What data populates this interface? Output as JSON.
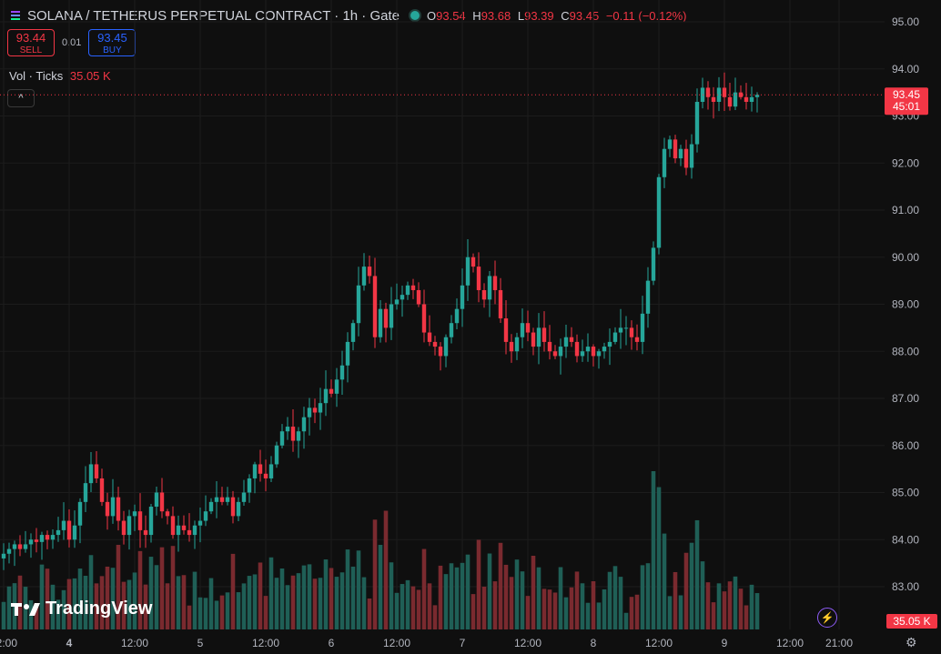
{
  "header": {
    "title": "SOLANA / TETHERUS PERPETUAL CONTRACT · 1h · Gate",
    "ohlc": [
      {
        "k": "O",
        "v": "93.54"
      },
      {
        "k": "H",
        "v": "93.68"
      },
      {
        "k": "L",
        "v": "93.39"
      },
      {
        "k": "C",
        "v": "93.45"
      }
    ],
    "change": "−0.11 (−0.12%)"
  },
  "trade": {
    "sell_price": "93.44",
    "sell_label": "SELL",
    "spread": "0.01",
    "buy_price": "93.45",
    "buy_label": "BUY"
  },
  "volume_legend": {
    "label": "Vol · Ticks",
    "value": "35.05 K"
  },
  "branding": "TradingView",
  "colors": {
    "up": "#26a69a",
    "down": "#f23645",
    "up_vol": "#1f5f56",
    "down_vol": "#7a2a2f",
    "bg": "#0f0f0f",
    "grid": "#1c1c1c"
  },
  "chart_data": {
    "type": "candlestick",
    "title": "SOLANA / TETHERUS PERPETUAL CONTRACT · 1h · Gate",
    "ylim": [
      82.5,
      95.3
    ],
    "y_ticks": [
      "95.00",
      "94.00",
      "93.00",
      "92.00",
      "91.00",
      "90.00",
      "89.00",
      "88.00",
      "87.00",
      "86.00",
      "85.00",
      "84.00",
      "83.00"
    ],
    "x_ticks": [
      {
        "label": "12:00",
        "bar": 0
      },
      {
        "label": "4",
        "bar": 12,
        "bold": true
      },
      {
        "label": "12:00",
        "bar": 24
      },
      {
        "label": "5",
        "bar": 36
      },
      {
        "label": "12:00",
        "bar": 48
      },
      {
        "label": "6",
        "bar": 60
      },
      {
        "label": "12:00",
        "bar": 72
      },
      {
        "label": "7",
        "bar": 84
      },
      {
        "label": "12:00",
        "bar": 96
      },
      {
        "label": "8",
        "bar": 108
      },
      {
        "label": "12:00",
        "bar": 120
      },
      {
        "label": "9",
        "bar": 132
      },
      {
        "label": "12:00",
        "bar": 144
      },
      {
        "label": "21:00",
        "bar": 153
      }
    ],
    "last_price": "93.45",
    "countdown": "45:01",
    "volume_last": "35.05 K",
    "close": [
      83.7,
      83.8,
      83.9,
      83.8,
      83.9,
      84.0,
      83.95,
      84.1,
      84.0,
      84.1,
      84.2,
      84.4,
      84.0,
      84.3,
      84.8,
      85.2,
      85.6,
      85.3,
      84.8,
      84.5,
      84.9,
      84.4,
      84.1,
      84.5,
      84.6,
      84.2,
      84.1,
      84.7,
      85.0,
      84.6,
      84.5,
      84.1,
      84.3,
      84.2,
      84.1,
      84.3,
      84.4,
      84.6,
      84.8,
      84.9,
      84.8,
      84.9,
      84.5,
      84.8,
      85.0,
      85.3,
      85.6,
      85.4,
      85.3,
      85.6,
      86.0,
      86.3,
      86.4,
      86.1,
      86.3,
      86.6,
      86.8,
      86.7,
      86.9,
      87.2,
      87.1,
      87.4,
      87.7,
      88.2,
      88.6,
      89.4,
      89.8,
      89.6,
      88.3,
      88.9,
      88.5,
      89.0,
      89.1,
      89.2,
      89.4,
      89.3,
      89.0,
      88.4,
      88.2,
      88.1,
      87.9,
      88.3,
      88.6,
      88.9,
      89.4,
      90.0,
      89.8,
      89.3,
      89.1,
      89.6,
      89.3,
      88.7,
      88.2,
      88.0,
      88.3,
      88.6,
      88.4,
      88.1,
      88.5,
      88.2,
      88.0,
      87.9,
      88.1,
      88.3,
      88.2,
      87.9,
      88.0,
      88.1,
      87.9,
      88.0,
      88.1,
      88.2,
      88.4,
      88.5,
      88.5,
      88.3,
      88.2,
      88.8,
      89.5,
      90.2,
      91.7,
      92.3,
      92.5,
      92.1,
      92.3,
      91.9,
      92.4,
      93.3,
      93.6,
      93.4,
      93.3,
      93.6,
      93.4,
      93.2,
      93.5,
      93.4,
      93.3,
      93.4,
      93.45
    ],
    "volume_scale_max": 40
  }
}
